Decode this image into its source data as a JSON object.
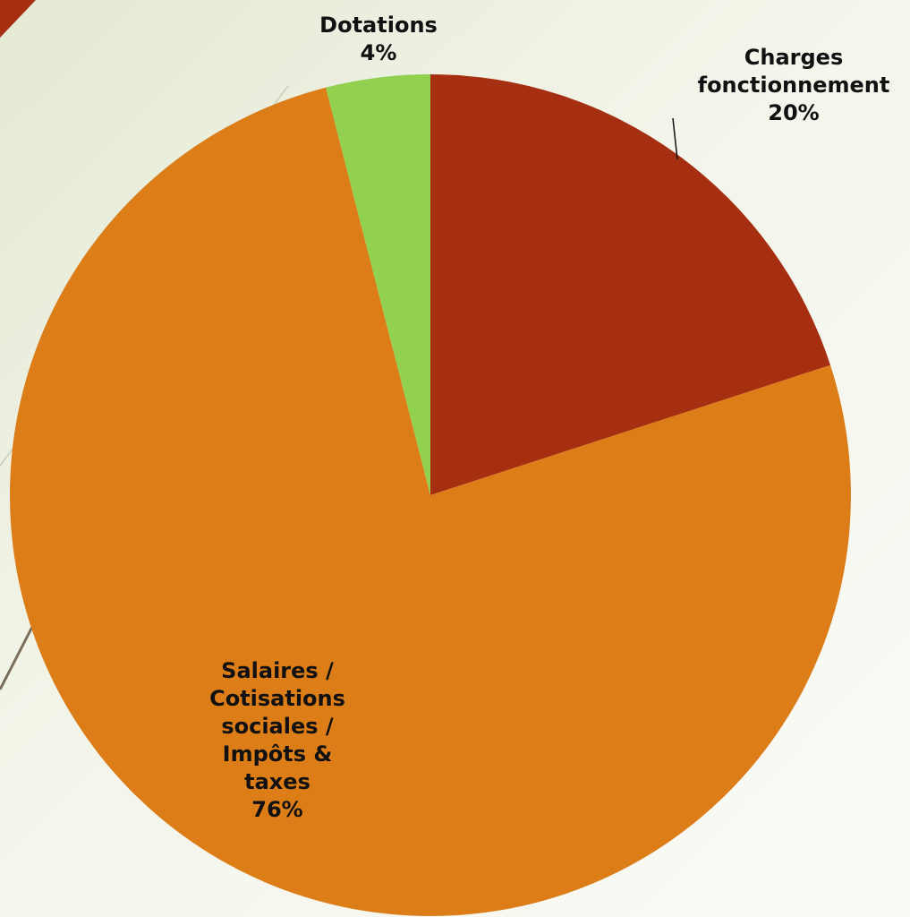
{
  "chart_data": {
    "type": "pie",
    "title": "",
    "slices": [
      {
        "label": [
          "Charges",
          "fonctionnement"
        ],
        "percent_label": "20%",
        "value": 20,
        "color": "#A52F10"
      },
      {
        "label": [
          "Salaires /",
          "Cotisations",
          "sociales /",
          "Impôts &",
          "taxes"
        ],
        "percent_label": "76%",
        "value": 76,
        "color": "#DC7D18"
      },
      {
        "label": [
          "Dotations"
        ],
        "percent_label": "4%",
        "value": 4,
        "color": "#92D050"
      }
    ],
    "legend": "none",
    "start_angle": "12 o'clock",
    "direction": "clockwise"
  },
  "decor": {
    "accent_color": "#A52F10",
    "line_color": "#7a6e5a"
  }
}
